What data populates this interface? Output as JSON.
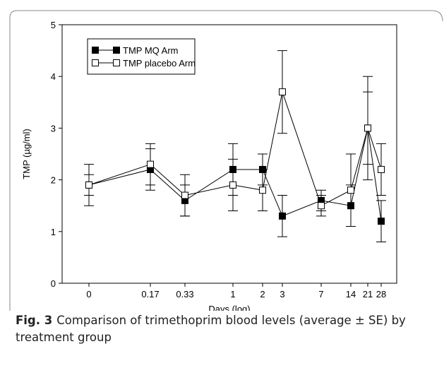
{
  "chart_data": {
    "type": "line",
    "x_label": "Days (log)",
    "y_label": "TMP (µg/ml)",
    "categories": [
      "0",
      "0.17",
      "0.33",
      "1",
      "2",
      "3",
      "7",
      "14",
      "21",
      "28"
    ],
    "series": [
      {
        "name": "TMP MQ Arm",
        "color": "#000000",
        "marker": "filled",
        "values": [
          1.9,
          2.2,
          1.6,
          2.2,
          2.2,
          1.3,
          1.6,
          1.5,
          3.0,
          1.2
        ],
        "errors": [
          0.4,
          0.4,
          0.3,
          0.5,
          0.3,
          0.4,
          0.2,
          0.4,
          1.0,
          0.4
        ]
      },
      {
        "name": "TMP placebo Arm",
        "color": "#000000",
        "marker": "open",
        "values": [
          1.9,
          2.3,
          1.7,
          1.9,
          1.8,
          3.7,
          1.5,
          1.8,
          3.0,
          2.2
        ],
        "errors": [
          0.2,
          0.4,
          0.4,
          0.5,
          0.4,
          0.8,
          0.2,
          0.7,
          0.7,
          0.5
        ]
      }
    ],
    "ylim": [
      0,
      5
    ],
    "yticks": [
      0,
      1,
      2,
      3,
      4,
      5
    ],
    "figure_label": "Fig. 3",
    "caption": "Comparison of trimethoprim blood levels (average ± SE) by treatment group"
  }
}
